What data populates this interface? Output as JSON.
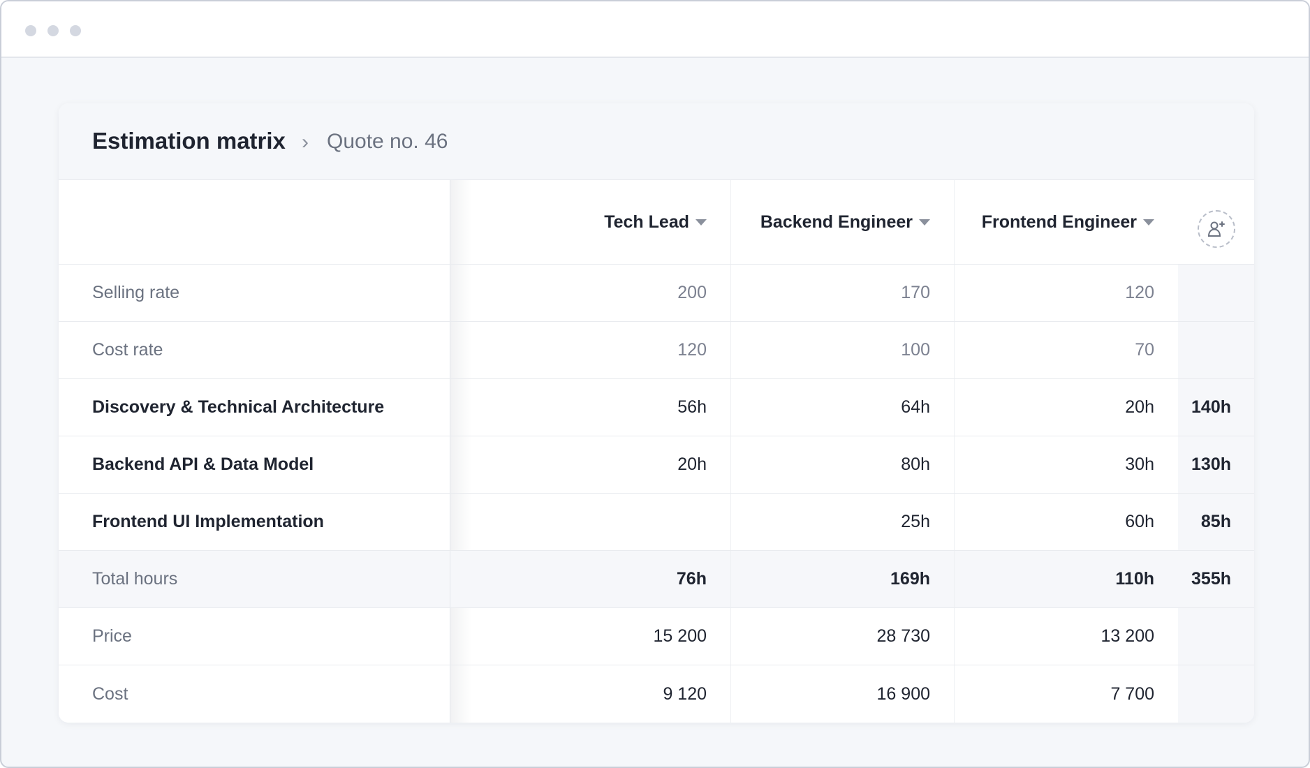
{
  "breadcrumb": {
    "title": "Estimation matrix",
    "separator": "›",
    "current": "Quote no. 46"
  },
  "columns": [
    {
      "label": "Tech Lead"
    },
    {
      "label": "Backend Engineer"
    },
    {
      "label": "Frontend Engineer"
    }
  ],
  "add_role": {
    "icon": "add-user-icon"
  },
  "rows": {
    "selling_rate": {
      "label": "Selling rate",
      "values": [
        "200",
        "170",
        "120"
      ],
      "total": ""
    },
    "cost_rate": {
      "label": "Cost rate",
      "values": [
        "120",
        "100",
        "70"
      ],
      "total": ""
    },
    "task1": {
      "label": "Discovery & Technical Architecture",
      "values": [
        "56h",
        "64h",
        "20h"
      ],
      "total": "140h"
    },
    "task2": {
      "label": "Backend API & Data Model",
      "values": [
        "20h",
        "80h",
        "30h"
      ],
      "total": "130h"
    },
    "task3": {
      "label": "Frontend UI Implementation",
      "values": [
        "",
        "25h",
        "60h"
      ],
      "total": "85h"
    },
    "total_hours": {
      "label": "Total hours",
      "values": [
        "76h",
        "169h",
        "110h"
      ],
      "total": "355h"
    },
    "price": {
      "label": "Price",
      "values": [
        "15 200",
        "28 730",
        "13 200"
      ],
      "total": ""
    },
    "cost": {
      "label": "Cost",
      "values": [
        "9 120",
        "16 900",
        "7 700"
      ],
      "total": ""
    }
  }
}
